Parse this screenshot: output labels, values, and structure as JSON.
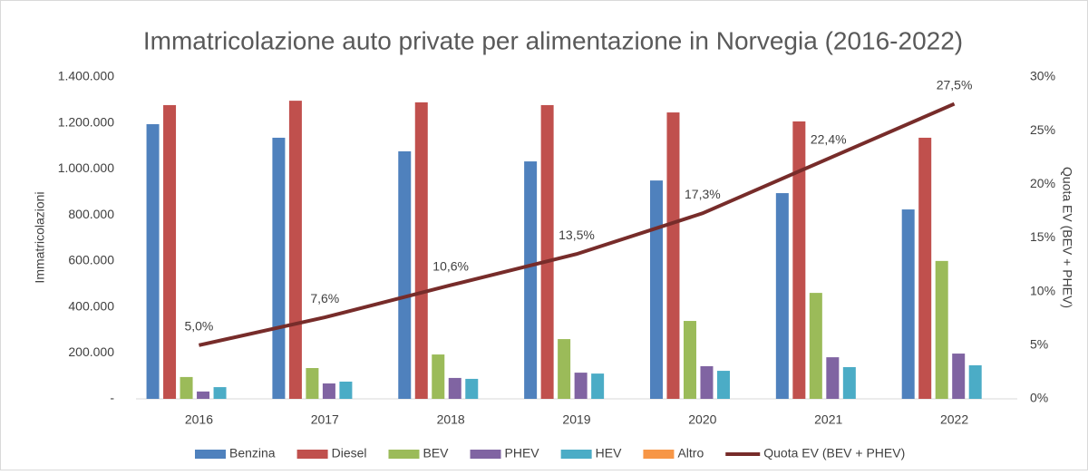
{
  "chart_data": {
    "type": "bar",
    "title": "Immatricolazione auto private per alimentazione in Norvegia (2016-2022)",
    "y_label": "Immatricolazioni",
    "y2_label": "Quota EV (BEV + PHEV)",
    "categories": [
      "2016",
      "2017",
      "2018",
      "2019",
      "2020",
      "2021",
      "2022"
    ],
    "series": [
      {
        "name": "Benzina",
        "type": "bar",
        "color": "#4f81bd",
        "values": [
          1195000,
          1136000,
          1077000,
          1033000,
          950000,
          895000,
          824000
        ]
      },
      {
        "name": "Diesel",
        "type": "bar",
        "color": "#c0504d",
        "values": [
          1278000,
          1297000,
          1290000,
          1278000,
          1246000,
          1207000,
          1136000
        ]
      },
      {
        "name": "BEV",
        "type": "bar",
        "color": "#9bbb59",
        "values": [
          95000,
          134000,
          193000,
          260000,
          339000,
          461000,
          600000
        ]
      },
      {
        "name": "PHEV",
        "type": "bar",
        "color": "#8064a2",
        "values": [
          32000,
          67000,
          91000,
          114000,
          142000,
          181000,
          197000
        ]
      },
      {
        "name": "HEV",
        "type": "bar",
        "color": "#4bacc6",
        "values": [
          51000,
          75000,
          87000,
          110000,
          122000,
          138000,
          146000
        ]
      },
      {
        "name": "Altro",
        "type": "bar",
        "color": "#f79646",
        "values": [
          0,
          0,
          0,
          0,
          0,
          0,
          0
        ]
      },
      {
        "name": "Quota EV (BEV + PHEV)",
        "type": "line",
        "axis": "y2",
        "color": "#772c2a",
        "values": [
          5.0,
          7.6,
          10.6,
          13.5,
          17.3,
          22.4,
          27.5
        ],
        "value_labels": [
          "5,0%",
          "7,6%",
          "10,6%",
          "13,5%",
          "17,3%",
          "22,4%",
          "27,5%"
        ]
      }
    ],
    "ylim": [
      0,
      1400000
    ],
    "yticks": [
      {
        "value": 0,
        "label": "-"
      },
      {
        "value": 200000,
        "label": "200.000"
      },
      {
        "value": 400000,
        "label": "400.000"
      },
      {
        "value": 600000,
        "label": "600.000"
      },
      {
        "value": 800000,
        "label": "800.000"
      },
      {
        "value": 1000000,
        "label": "1.000.000"
      },
      {
        "value": 1200000,
        "label": "1.200.000"
      },
      {
        "value": 1400000,
        "label": "1.400.000"
      }
    ],
    "y2lim": [
      0,
      30
    ],
    "y2ticks": [
      {
        "value": 0,
        "label": "0%"
      },
      {
        "value": 5,
        "label": "5%"
      },
      {
        "value": 10,
        "label": "10%"
      },
      {
        "value": 15,
        "label": "15%"
      },
      {
        "value": 20,
        "label": "20%"
      },
      {
        "value": 25,
        "label": "25%"
      },
      {
        "value": 30,
        "label": "30%"
      }
    ],
    "grid": false,
    "legend": "bottom"
  }
}
